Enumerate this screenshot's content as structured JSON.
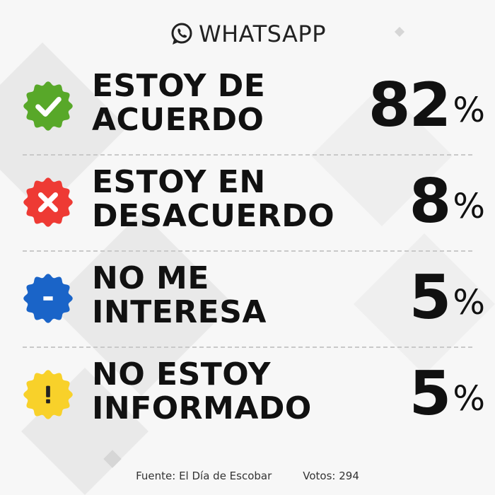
{
  "header": {
    "title": "WHATSAPP",
    "icon": "whatsapp-icon"
  },
  "chart_data": {
    "type": "table",
    "categories": [
      "ESTOY DE ACUERDO",
      "ESTOY EN DESACUERDO",
      "NO ME INTERESA",
      "NO ESTOY INFORMADO"
    ],
    "values": [
      82,
      8,
      5,
      5
    ],
    "unit": "%"
  },
  "rows": [
    {
      "line1": "ESTOY DE",
      "line2": "ACUERDO",
      "value": "82",
      "unit": "%",
      "icon": "check-icon",
      "color": "#58a829"
    },
    {
      "line1": "ESTOY EN",
      "line2": "DESACUERDO",
      "value": "8",
      "unit": "%",
      "icon": "cross-icon",
      "color": "#ee3a34"
    },
    {
      "line1": "NO ME",
      "line2": "INTERESA",
      "value": "5",
      "unit": "%",
      "icon": "minus-icon",
      "color": "#1a64c8"
    },
    {
      "line1": "NO ESTOY",
      "line2": "INFORMADO",
      "value": "5",
      "unit": "%",
      "icon": "exclamation-icon",
      "color": "#f8d12a"
    }
  ],
  "footer": {
    "source": "Fuente: El Día de Escobar",
    "votes": "Votos: 294"
  }
}
